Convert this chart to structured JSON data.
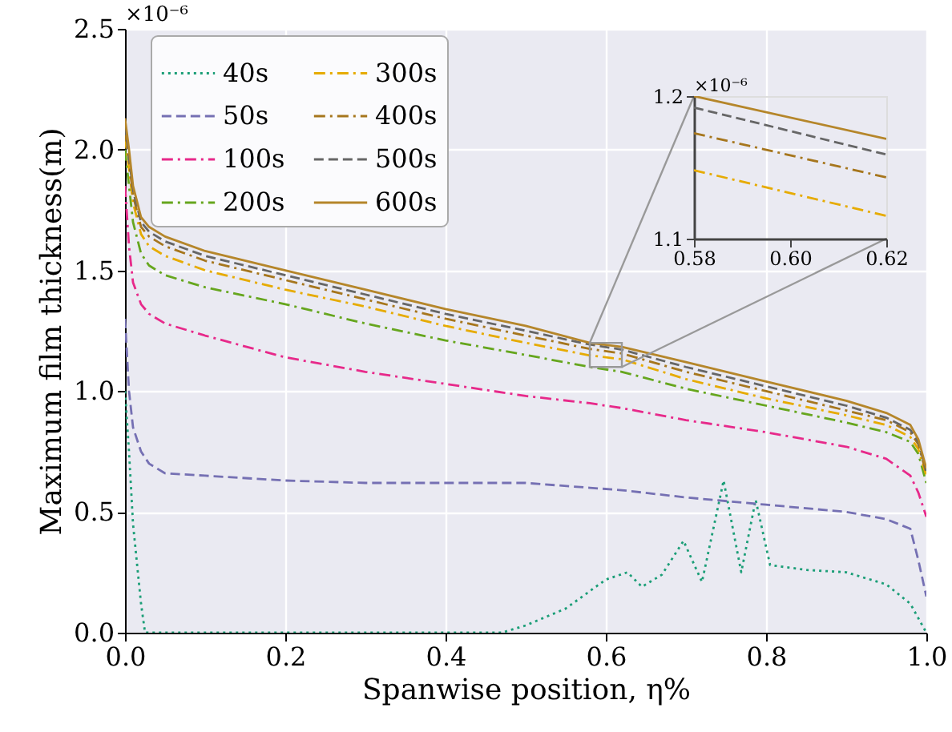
{
  "chart_data": [
    {
      "type": "line",
      "xlabel": "Spanwise position, η%",
      "ylabel": "Maximum film thickness(m)",
      "xlim": [
        0,
        1
      ],
      "ylim": [
        0,
        2.5
      ],
      "xticks": [
        {
          "value": 0,
          "label": "0.0"
        },
        {
          "value": 0.2,
          "label": "0.2"
        },
        {
          "value": 0.4,
          "label": "0.4"
        },
        {
          "value": 0.6,
          "label": "0.6"
        },
        {
          "value": 0.8,
          "label": "0.8"
        },
        {
          "value": 1,
          "label": "1.0"
        }
      ],
      "yticks": [
        {
          "value": 0,
          "label": "0.0"
        },
        {
          "value": 0.5,
          "label": "0.5"
        },
        {
          "value": 1,
          "label": "1.0"
        },
        {
          "value": 1.5,
          "label": "1.5"
        },
        {
          "value": 2,
          "label": "2.0"
        },
        {
          "value": 2.5,
          "label": "2.5"
        }
      ],
      "grid": true,
      "legend": "top left",
      "annotations": [
        "×10⁻⁶"
      ],
      "x": [
        0.0,
        0.005,
        0.01,
        0.02,
        0.03,
        0.05,
        0.1,
        0.2,
        0.3,
        0.4,
        0.5,
        0.58,
        0.62,
        0.7,
        0.8,
        0.9,
        0.95,
        0.98,
        0.99,
        1.0
      ],
      "series": [
        {
          "name": "40s",
          "color": "#1b9e77",
          "line_style": "dotted",
          "x": [
            0.0,
            0.005,
            0.01,
            0.02,
            0.025,
            0.1,
            0.3,
            0.47,
            0.5,
            0.55,
            0.6,
            0.627,
            0.645,
            0.67,
            0.697,
            0.72,
            0.747,
            0.769,
            0.787,
            0.805,
            0.85,
            0.9,
            0.95,
            0.98,
            1.0
          ],
          "values": [
            1.0,
            0.75,
            0.45,
            0.12,
            0.0,
            0.0,
            0.0,
            0.0,
            0.03,
            0.1,
            0.22,
            0.25,
            0.19,
            0.24,
            0.38,
            0.21,
            0.63,
            0.25,
            0.55,
            0.28,
            0.26,
            0.25,
            0.2,
            0.12,
            0.0
          ]
        },
        {
          "name": "50s",
          "color": "#7570b3",
          "line_style": "dashed",
          "values": [
            1.3,
            1.0,
            0.85,
            0.75,
            0.7,
            0.66,
            0.65,
            0.63,
            0.62,
            0.62,
            0.62,
            0.6,
            0.59,
            0.56,
            0.53,
            0.5,
            0.47,
            0.43,
            0.3,
            0.15
          ]
        },
        {
          "name": "100s",
          "color": "#e7298a",
          "line_style": "dashdot",
          "values": [
            1.85,
            1.6,
            1.45,
            1.36,
            1.32,
            1.28,
            1.23,
            1.14,
            1.08,
            1.03,
            0.98,
            0.95,
            0.93,
            0.88,
            0.83,
            0.77,
            0.72,
            0.65,
            0.58,
            0.48
          ]
        },
        {
          "name": "200s",
          "color": "#66a61e",
          "line_style": "dashdot",
          "values": [
            2.0,
            1.85,
            1.7,
            1.57,
            1.52,
            1.48,
            1.43,
            1.36,
            1.28,
            1.21,
            1.15,
            1.1,
            1.08,
            1.01,
            0.94,
            0.87,
            0.83,
            0.79,
            0.74,
            0.62
          ]
        },
        {
          "name": "300s",
          "color": "#e6ab02",
          "line_style": "dashdot",
          "values": [
            2.05,
            1.92,
            1.78,
            1.65,
            1.6,
            1.56,
            1.5,
            1.42,
            1.35,
            1.27,
            1.2,
            1.148,
            1.132,
            1.05,
            0.97,
            0.9,
            0.86,
            0.81,
            0.76,
            0.65
          ]
        },
        {
          "name": "400s",
          "color": "#a6761d",
          "line_style": "dashdot",
          "values": [
            2.08,
            1.95,
            1.81,
            1.68,
            1.64,
            1.6,
            1.54,
            1.46,
            1.38,
            1.3,
            1.23,
            1.175,
            1.156,
            1.08,
            1.0,
            0.92,
            0.88,
            0.83,
            0.78,
            0.66
          ]
        },
        {
          "name": "500s",
          "color": "#666666",
          "line_style": "dashed",
          "values": [
            2.1,
            1.97,
            1.83,
            1.7,
            1.66,
            1.62,
            1.56,
            1.48,
            1.4,
            1.32,
            1.25,
            1.193,
            1.172,
            1.1,
            1.02,
            0.94,
            0.89,
            0.84,
            0.79,
            0.67
          ]
        },
        {
          "name": "600s",
          "color": "#b5862a",
          "line_style": "solid",
          "values": [
            2.13,
            2.0,
            1.85,
            1.72,
            1.68,
            1.64,
            1.58,
            1.5,
            1.42,
            1.34,
            1.27,
            1.2,
            1.183,
            1.12,
            1.04,
            0.96,
            0.91,
            0.86,
            0.8,
            0.68
          ]
        }
      ]
    },
    {
      "type": "line",
      "xlim": [
        0.58,
        0.62
      ],
      "ylim": [
        1.1,
        1.2
      ],
      "xticks": [
        {
          "value": 0.58,
          "label": "0.58"
        },
        {
          "value": 0.6,
          "label": "0.60"
        },
        {
          "value": 0.62,
          "label": "0.62"
        }
      ],
      "yticks": [
        {
          "value": 1.1,
          "label": "1.1"
        },
        {
          "value": 1.2,
          "label": "1.2"
        }
      ],
      "annotations": [
        "×10⁻⁶"
      ],
      "x": [
        0.58,
        0.62
      ],
      "series": [
        {
          "color": "#e6ab02",
          "line_style": "dashdot",
          "values": [
            1.148,
            1.116
          ]
        },
        {
          "color": "#a6761d",
          "line_style": "dashdot",
          "values": [
            1.174,
            1.143
          ]
        },
        {
          "color": "#666666",
          "line_style": "dashed",
          "values": [
            1.192,
            1.159
          ]
        },
        {
          "color": "#b5862a",
          "line_style": "solid",
          "values": [
            1.2,
            1.17
          ]
        }
      ]
    }
  ]
}
